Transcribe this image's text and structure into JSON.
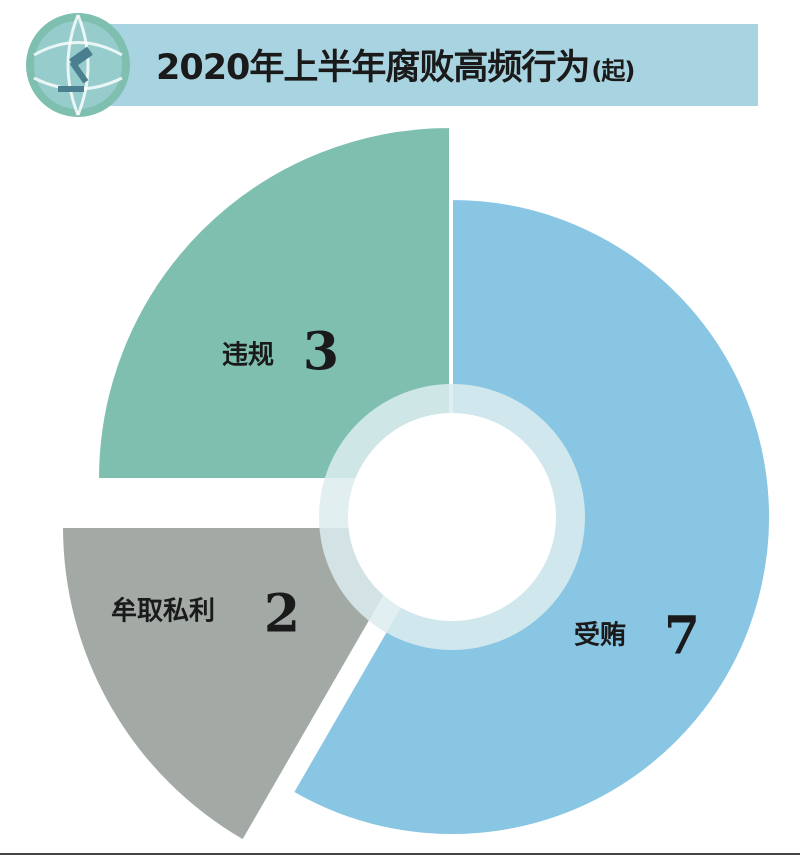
{
  "title": {
    "text": "2020年上半年腐败高频行为",
    "unit": "(起)"
  },
  "badge": {
    "icon": "gavel-globe-icon"
  },
  "colors": {
    "title_bar": "#a8d4e2",
    "violation": "#7fbfaf",
    "bribery": "#88c6e3",
    "self_interest": "#a3aaa6",
    "inner_ring": "#dcecee"
  },
  "chart_data": {
    "type": "pie",
    "title": "2020年上半年腐败高频行为",
    "unit": "(起)",
    "categories": [
      "受贿",
      "牟取私利",
      "违规"
    ],
    "values": [
      7,
      2,
      3
    ],
    "series": [
      {
        "label": "受贿",
        "value": 7,
        "color": "#88c6e3"
      },
      {
        "label": "牟取私利",
        "value": 2,
        "color": "#a3aaa6"
      },
      {
        "label": "违规",
        "value": 3,
        "color": "#7fbfaf"
      }
    ]
  }
}
